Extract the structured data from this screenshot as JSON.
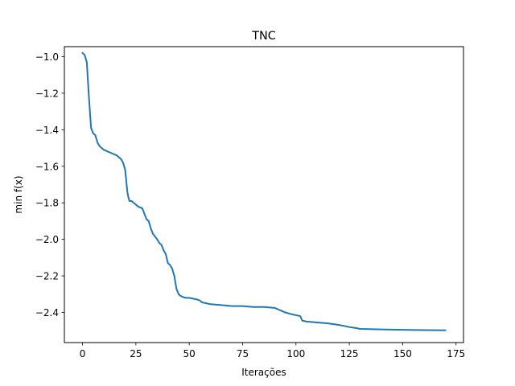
{
  "chart_data": {
    "type": "line",
    "title": "TNC",
    "xlabel": "Iterações",
    "ylabel": "min f(x)",
    "xlim": [
      -8.5,
      178.5
    ],
    "ylim": [
      -2.565,
      -0.945
    ],
    "xticks": [
      0,
      25,
      50,
      75,
      100,
      125,
      150,
      175
    ],
    "xtick_labels": [
      "0",
      "25",
      "50",
      "75",
      "100",
      "125",
      "150",
      "175"
    ],
    "yticks": [
      -1.0,
      -1.2,
      -1.4,
      -1.6,
      -1.8,
      -2.0,
      -2.2,
      -2.4
    ],
    "ytick_labels": [
      "−1.0",
      "−1.2",
      "−1.4",
      "−1.6",
      "−1.8",
      "−2.0",
      "−2.2",
      "−2.4"
    ],
    "grid": false,
    "legend": "none",
    "series": [
      {
        "color": "#1f77b4",
        "x": [
          0,
          1,
          2,
          3,
          4,
          5,
          6,
          7,
          8,
          10,
          12,
          14,
          16,
          18,
          19,
          20,
          21,
          21.5,
          22,
          23,
          25,
          26,
          28,
          29,
          30,
          31,
          32,
          33,
          35,
          36,
          37,
          38,
          39,
          40,
          41,
          42,
          43,
          44,
          45,
          46,
          48,
          50,
          52,
          54,
          55,
          56,
          58,
          60,
          65,
          70,
          75,
          80,
          85,
          90,
          92,
          95,
          98,
          100,
          102,
          103,
          105,
          110,
          115,
          118,
          120,
          123,
          125,
          128,
          130,
          140,
          150,
          160,
          170
        ],
        "y": [
          -0.98,
          -0.99,
          -1.03,
          -1.22,
          -1.39,
          -1.42,
          -1.43,
          -1.47,
          -1.49,
          -1.51,
          -1.52,
          -1.53,
          -1.54,
          -1.56,
          -1.58,
          -1.62,
          -1.74,
          -1.77,
          -1.79,
          -1.79,
          -1.81,
          -1.82,
          -1.83,
          -1.86,
          -1.89,
          -1.9,
          -1.94,
          -1.97,
          -2.0,
          -2.02,
          -2.03,
          -2.06,
          -2.08,
          -2.13,
          -2.14,
          -2.16,
          -2.2,
          -2.27,
          -2.3,
          -2.31,
          -2.32,
          -2.32,
          -2.325,
          -2.33,
          -2.335,
          -2.345,
          -2.35,
          -2.355,
          -2.36,
          -2.365,
          -2.365,
          -2.37,
          -2.37,
          -2.375,
          -2.385,
          -2.4,
          -2.41,
          -2.415,
          -2.42,
          -2.445,
          -2.45,
          -2.455,
          -2.46,
          -2.465,
          -2.468,
          -2.475,
          -2.48,
          -2.485,
          -2.49,
          -2.493,
          -2.495,
          -2.497,
          -2.498
        ]
      }
    ]
  }
}
